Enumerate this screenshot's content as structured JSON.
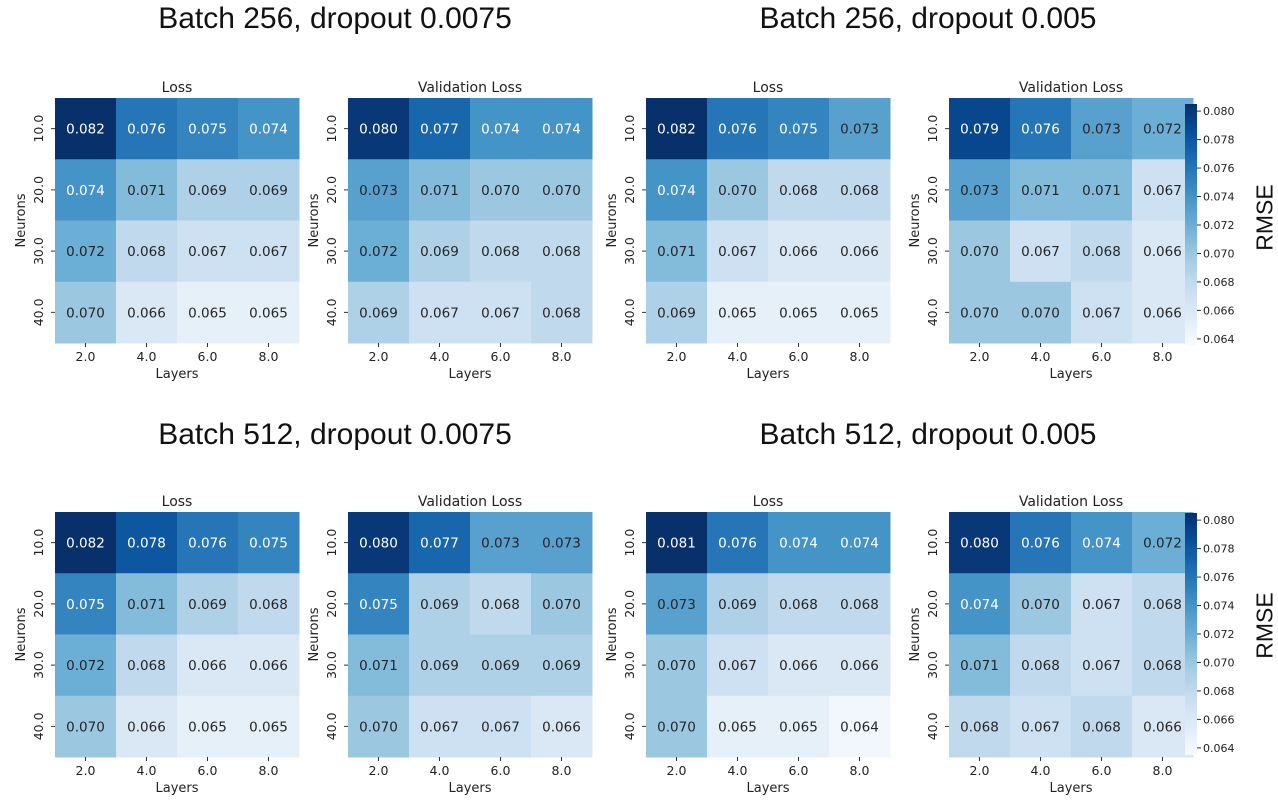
{
  "groups": [
    {
      "title": "Batch 256, dropout 0.0075"
    },
    {
      "title": "Batch 256, dropout 0.005"
    },
    {
      "title": "Batch 512, dropout 0.0075"
    },
    {
      "title": "Batch 512, dropout 0.005"
    }
  ],
  "colorbar": {
    "label": "RMSE",
    "ticks": [
      "0.080",
      "0.078",
      "0.076",
      "0.074",
      "0.072",
      "0.070",
      "0.068",
      "0.066",
      "0.064"
    ],
    "range": [
      0.0635,
      0.0805
    ],
    "colormap": "Blues"
  },
  "chart_data": [
    {
      "type": "heatmap",
      "group": 0,
      "title": "Loss",
      "xlabel": "Layers",
      "ylabel": "Neurons",
      "x_categories": [
        "2.0",
        "4.0",
        "6.0",
        "8.0"
      ],
      "y_categories": [
        "10.0",
        "20.0",
        "30.0",
        "40.0"
      ],
      "values": [
        [
          "0.082",
          "0.076",
          "0.075",
          "0.074"
        ],
        [
          "0.074",
          "0.071",
          "0.069",
          "0.069"
        ],
        [
          "0.072",
          "0.068",
          "0.067",
          "0.067"
        ],
        [
          "0.070",
          "0.066",
          "0.065",
          "0.065"
        ]
      ]
    },
    {
      "type": "heatmap",
      "group": 0,
      "title": "Validation Loss",
      "xlabel": "Layers",
      "ylabel": "Neurons",
      "x_categories": [
        "2.0",
        "4.0",
        "6.0",
        "8.0"
      ],
      "y_categories": [
        "10.0",
        "20.0",
        "30.0",
        "40.0"
      ],
      "values": [
        [
          "0.080",
          "0.077",
          "0.074",
          "0.074"
        ],
        [
          "0.073",
          "0.071",
          "0.070",
          "0.070"
        ],
        [
          "0.072",
          "0.069",
          "0.068",
          "0.068"
        ],
        [
          "0.069",
          "0.067",
          "0.067",
          "0.068"
        ]
      ]
    },
    {
      "type": "heatmap",
      "group": 1,
      "title": "Loss",
      "xlabel": "Layers",
      "ylabel": "Neurons",
      "x_categories": [
        "2.0",
        "4.0",
        "6.0",
        "8.0"
      ],
      "y_categories": [
        "10.0",
        "20.0",
        "30.0",
        "40.0"
      ],
      "values": [
        [
          "0.082",
          "0.076",
          "0.075",
          "0.073"
        ],
        [
          "0.074",
          "0.070",
          "0.068",
          "0.068"
        ],
        [
          "0.071",
          "0.067",
          "0.066",
          "0.066"
        ],
        [
          "0.069",
          "0.065",
          "0.065",
          "0.065"
        ]
      ]
    },
    {
      "type": "heatmap",
      "group": 1,
      "title": "Validation Loss",
      "xlabel": "Layers",
      "ylabel": "Neurons",
      "x_categories": [
        "2.0",
        "4.0",
        "6.0",
        "8.0"
      ],
      "y_categories": [
        "10.0",
        "20.0",
        "30.0",
        "40.0"
      ],
      "values": [
        [
          "0.079",
          "0.076",
          "0.073",
          "0.072"
        ],
        [
          "0.073",
          "0.071",
          "0.071",
          "0.067"
        ],
        [
          "0.070",
          "0.067",
          "0.068",
          "0.066"
        ],
        [
          "0.070",
          "0.070",
          "0.067",
          "0.066"
        ]
      ]
    },
    {
      "type": "heatmap",
      "group": 2,
      "title": "Loss",
      "xlabel": "Layers",
      "ylabel": "Neurons",
      "x_categories": [
        "2.0",
        "4.0",
        "6.0",
        "8.0"
      ],
      "y_categories": [
        "10.0",
        "20.0",
        "30.0",
        "40.0"
      ],
      "values": [
        [
          "0.082",
          "0.078",
          "0.076",
          "0.075"
        ],
        [
          "0.075",
          "0.071",
          "0.069",
          "0.068"
        ],
        [
          "0.072",
          "0.068",
          "0.066",
          "0.066"
        ],
        [
          "0.070",
          "0.066",
          "0.065",
          "0.065"
        ]
      ]
    },
    {
      "type": "heatmap",
      "group": 2,
      "title": "Validation Loss",
      "xlabel": "Layers",
      "ylabel": "Neurons",
      "x_categories": [
        "2.0",
        "4.0",
        "6.0",
        "8.0"
      ],
      "y_categories": [
        "10.0",
        "20.0",
        "30.0",
        "40.0"
      ],
      "values": [
        [
          "0.080",
          "0.077",
          "0.073",
          "0.073"
        ],
        [
          "0.075",
          "0.069",
          "0.068",
          "0.070"
        ],
        [
          "0.071",
          "0.069",
          "0.069",
          "0.069"
        ],
        [
          "0.070",
          "0.067",
          "0.067",
          "0.066"
        ]
      ]
    },
    {
      "type": "heatmap",
      "group": 3,
      "title": "Loss",
      "xlabel": "Layers",
      "ylabel": "Neurons",
      "x_categories": [
        "2.0",
        "4.0",
        "6.0",
        "8.0"
      ],
      "y_categories": [
        "10.0",
        "20.0",
        "30.0",
        "40.0"
      ],
      "values": [
        [
          "0.081",
          "0.076",
          "0.074",
          "0.074"
        ],
        [
          "0.073",
          "0.069",
          "0.068",
          "0.068"
        ],
        [
          "0.070",
          "0.067",
          "0.066",
          "0.066"
        ],
        [
          "0.070",
          "0.065",
          "0.065",
          "0.064"
        ]
      ]
    },
    {
      "type": "heatmap",
      "group": 3,
      "title": "Validation Loss",
      "xlabel": "Layers",
      "ylabel": "Neurons",
      "x_categories": [
        "2.0",
        "4.0",
        "6.0",
        "8.0"
      ],
      "y_categories": [
        "10.0",
        "20.0",
        "30.0",
        "40.0"
      ],
      "values": [
        [
          "0.080",
          "0.076",
          "0.074",
          "0.072"
        ],
        [
          "0.074",
          "0.070",
          "0.067",
          "0.068"
        ],
        [
          "0.071",
          "0.068",
          "0.067",
          "0.068"
        ],
        [
          "0.068",
          "0.067",
          "0.068",
          "0.066"
        ]
      ]
    }
  ]
}
